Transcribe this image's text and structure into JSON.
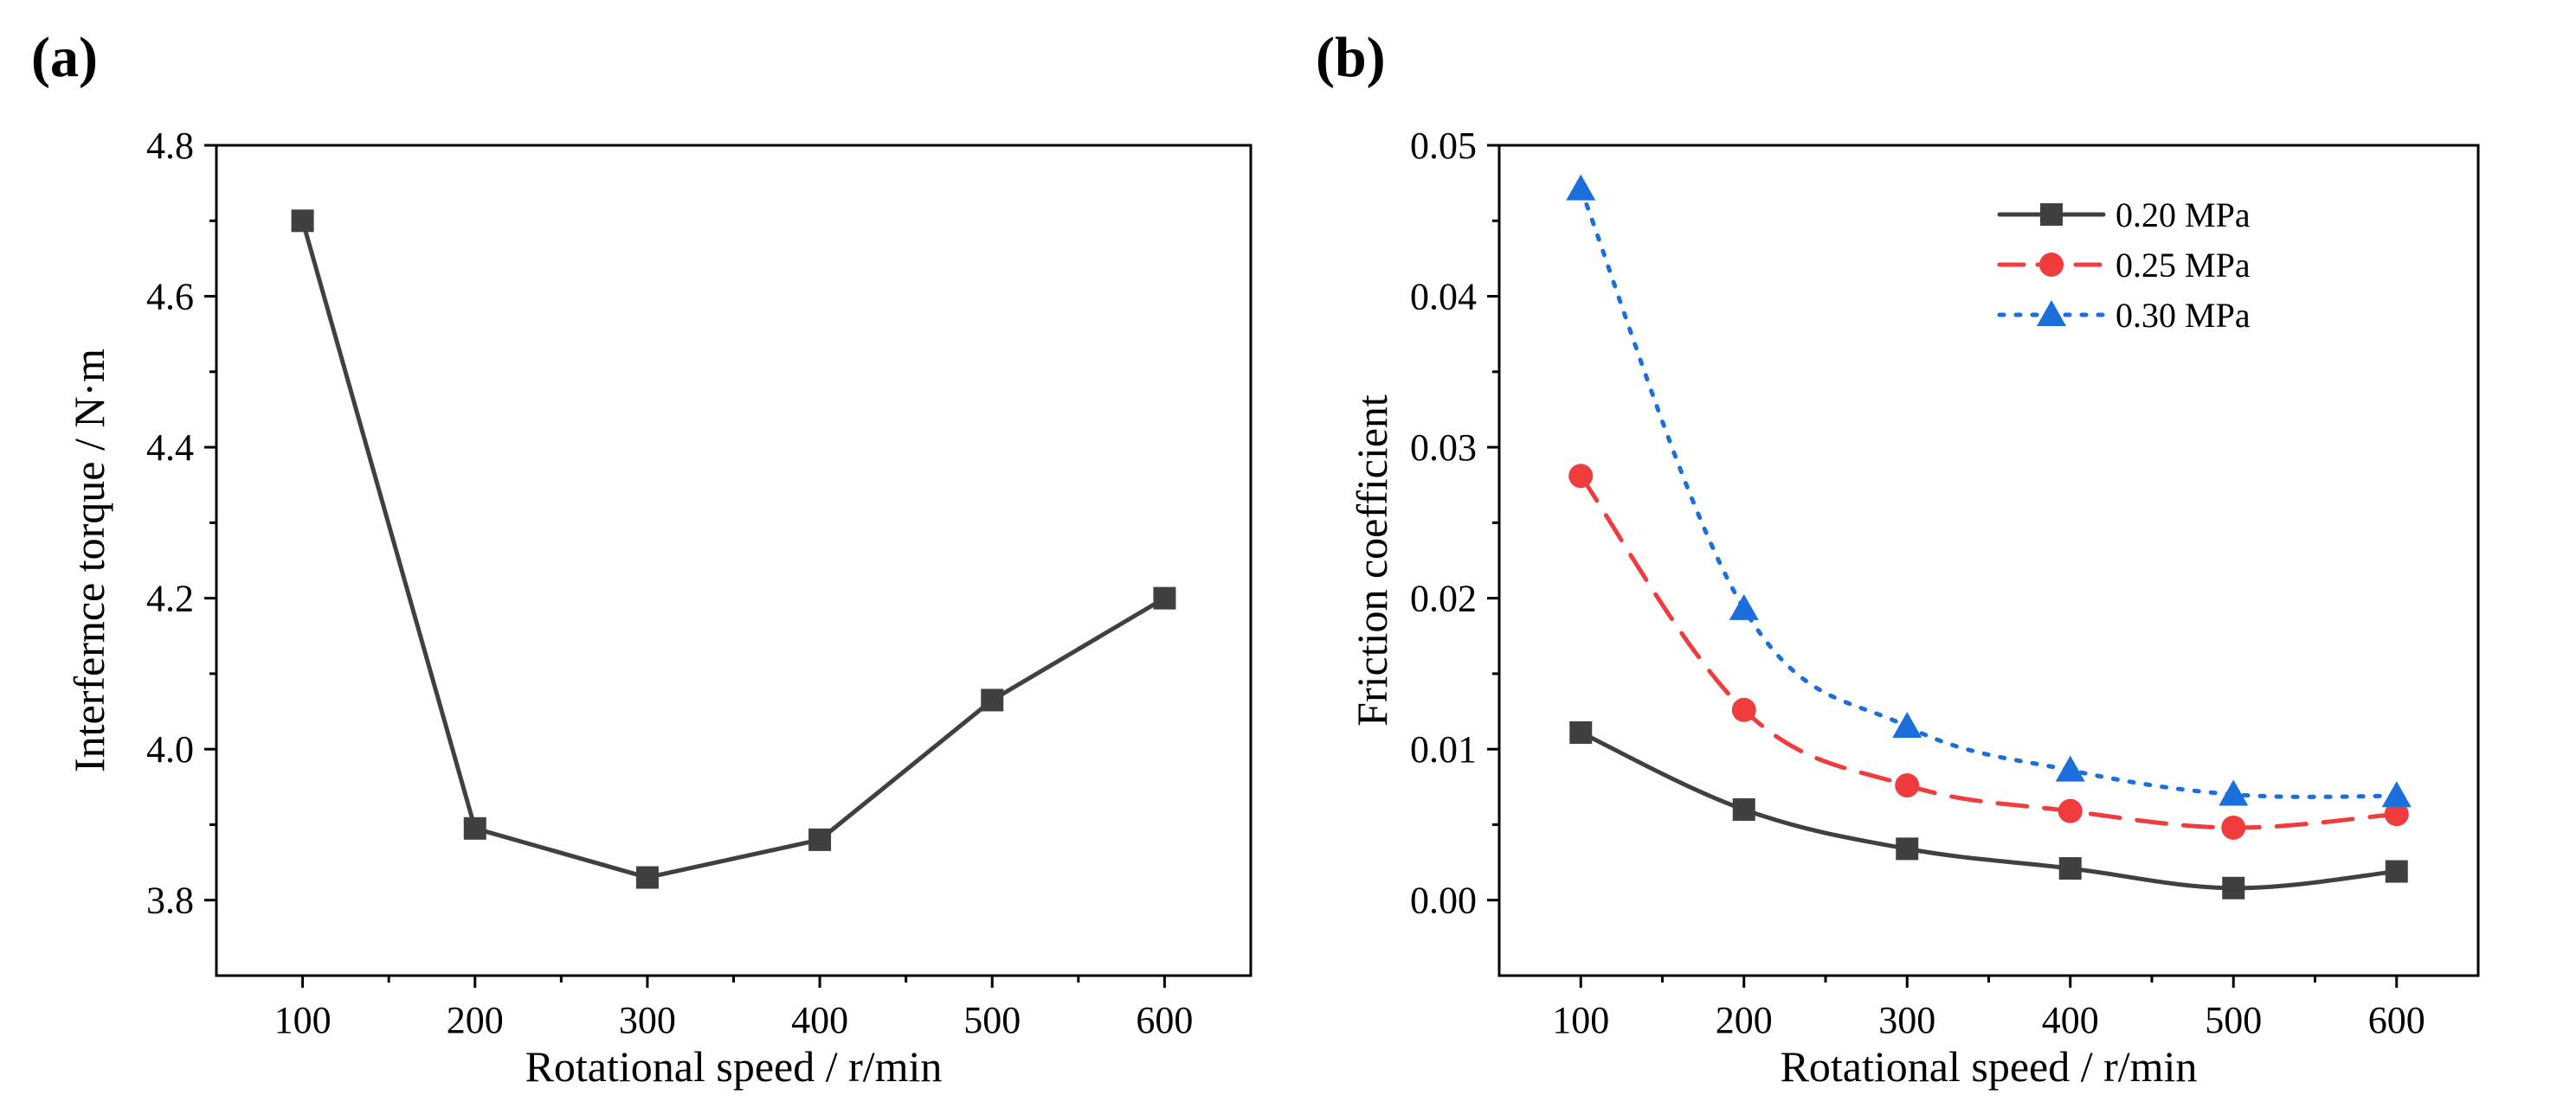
{
  "panels": [
    {
      "label": "(a)"
    },
    {
      "label": "(b)"
    }
  ],
  "chart_data": [
    {
      "type": "line",
      "x": [
        100,
        200,
        300,
        400,
        500,
        600
      ],
      "xticks": [
        "100",
        "200",
        "300",
        "400",
        "500",
        "600"
      ],
      "xlim": [
        50,
        650
      ],
      "yticks": [
        "3.8",
        "4.0",
        "4.2",
        "4.4",
        "4.6",
        "4.8"
      ],
      "ylim": [
        3.7,
        4.8
      ],
      "xlabel": "Rotational speed / r/min",
      "ylabel": "Interfernce torque / N·m",
      "grid": false,
      "series": [
        {
          "values": [
            4.7,
            3.895,
            3.83,
            3.88,
            4.065,
            4.2
          ],
          "color": "#404040",
          "marker": "square",
          "line": "solid"
        }
      ]
    },
    {
      "type": "line",
      "x": [
        100,
        200,
        300,
        400,
        500,
        600
      ],
      "xticks": [
        "100",
        "200",
        "300",
        "400",
        "500",
        "600"
      ],
      "xlim": [
        50,
        650
      ],
      "yticks": [
        "0.00",
        "0.01",
        "0.02",
        "0.03",
        "0.04",
        "0.05"
      ],
      "ylim": [
        -0.005,
        0.05
      ],
      "xlabel": "Rotational speed / r/min",
      "ylabel": "Friction coefficient",
      "grid": false,
      "legend": "top-right",
      "series": [
        {
          "name": "0.20 MPa",
          "values": [
            0.0111,
            0.006,
            0.0034,
            0.0021,
            0.0008,
            0.0019
          ],
          "color": "#404040",
          "marker": "square",
          "line": "solid"
        },
        {
          "name": "0.25 MPa",
          "values": [
            0.0281,
            0.0126,
            0.0076,
            0.0059,
            0.0048,
            0.0057
          ],
          "color": "#f03c3c",
          "marker": "circle",
          "line": "dashed"
        },
        {
          "name": "0.30 MPa",
          "values": [
            0.0471,
            0.0193,
            0.0115,
            0.0086,
            0.007,
            0.0069
          ],
          "color": "#1a6fdd",
          "marker": "triangle",
          "line": "dotted"
        }
      ]
    }
  ]
}
